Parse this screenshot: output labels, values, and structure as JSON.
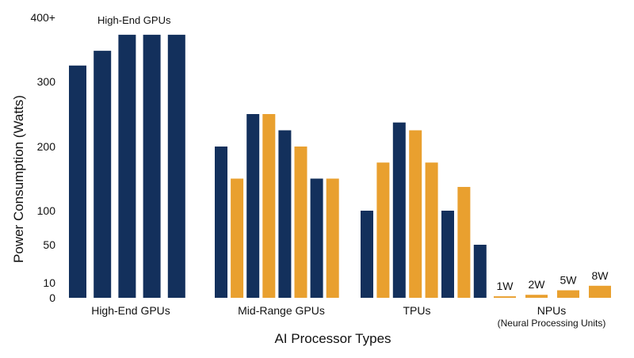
{
  "chart_data": {
    "type": "bar",
    "title": "",
    "xlabel": "AI Processor Types",
    "ylabel": "Power Consumption (Watts)",
    "ylim": [
      0,
      400
    ],
    "yticks": [
      {
        "value": 0,
        "label": "0"
      },
      {
        "value": 10,
        "label": "10"
      },
      {
        "value": 50,
        "label": "50"
      },
      {
        "value": 100,
        "label": "100"
      },
      {
        "value": 200,
        "label": "200"
      },
      {
        "value": 300,
        "label": "300"
      },
      {
        "value": 400,
        "label": "400+"
      }
    ],
    "grid": false,
    "legend": "none",
    "colors": {
      "navy": "#13305c",
      "amber": "#e9a02f"
    },
    "annotation": "High-End GPUs",
    "groups": [
      {
        "label": "High-End GPUs",
        "sublabel": "",
        "bars": [
          {
            "value": 325,
            "color": "navy"
          },
          {
            "value": 348,
            "color": "navy"
          },
          {
            "value": 373,
            "color": "navy"
          },
          {
            "value": 373,
            "color": "navy"
          },
          {
            "value": 373,
            "color": "navy"
          }
        ]
      },
      {
        "label": "Mid-Range GPUs",
        "sublabel": "",
        "bars": [
          {
            "value": 200,
            "color": "navy"
          },
          {
            "value": 150,
            "color": "amber"
          },
          {
            "value": 250,
            "color": "navy"
          },
          {
            "value": 250,
            "color": "amber"
          },
          {
            "value": 225,
            "color": "navy"
          },
          {
            "value": 200,
            "color": "amber"
          },
          {
            "value": 150,
            "color": "navy"
          },
          {
            "value": 150,
            "color": "amber"
          }
        ]
      },
      {
        "label": "TPUs",
        "sublabel": "",
        "bars": [
          {
            "value": 100,
            "color": "navy"
          },
          {
            "value": 175,
            "color": "amber"
          },
          {
            "value": 237,
            "color": "navy"
          },
          {
            "value": 225,
            "color": "amber"
          },
          {
            "value": 175,
            "color": "amber"
          },
          {
            "value": 100,
            "color": "navy"
          },
          {
            "value": 137,
            "color": "amber"
          },
          {
            "value": 50,
            "color": "navy"
          }
        ]
      },
      {
        "label": "NPUs",
        "sublabel": "(Neural Processing Units)",
        "bars": [
          {
            "value": 1,
            "color": "amber",
            "label": "1W"
          },
          {
            "value": 2,
            "color": "amber",
            "label": "2W"
          },
          {
            "value": 5,
            "color": "amber",
            "label": "5W"
          },
          {
            "value": 8,
            "color": "amber",
            "label": "8W"
          }
        ]
      }
    ]
  }
}
